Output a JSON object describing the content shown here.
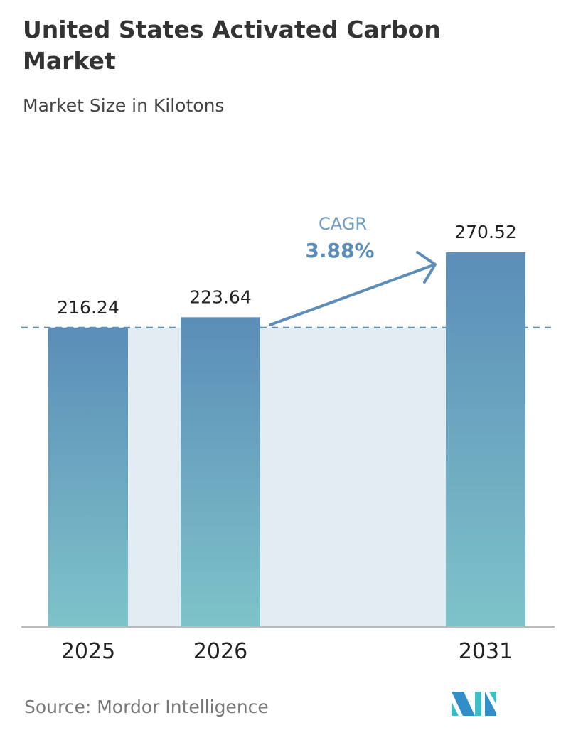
{
  "chart_data": {
    "type": "bar",
    "title": "United States Activated Carbon Market",
    "subtitle": "Market Size in Kilotons",
    "categories": [
      "2025",
      "2026",
      "2031"
    ],
    "values": [
      216.24,
      223.64,
      270.52
    ],
    "value_labels": [
      "216.24",
      "223.64",
      "270.52"
    ],
    "ylim": [
      0,
      280
    ],
    "xlabel": "",
    "ylabel": "",
    "grid": false,
    "annotation": {
      "label": "CAGR",
      "value": "3.88%"
    },
    "colors": {
      "bar_top": "#5b8db8",
      "bar_bottom": "#7ec3c9",
      "shade": "#e3ebf3",
      "accent": "#5b8db8"
    }
  },
  "source": "Source:  Mordor Intelligence"
}
